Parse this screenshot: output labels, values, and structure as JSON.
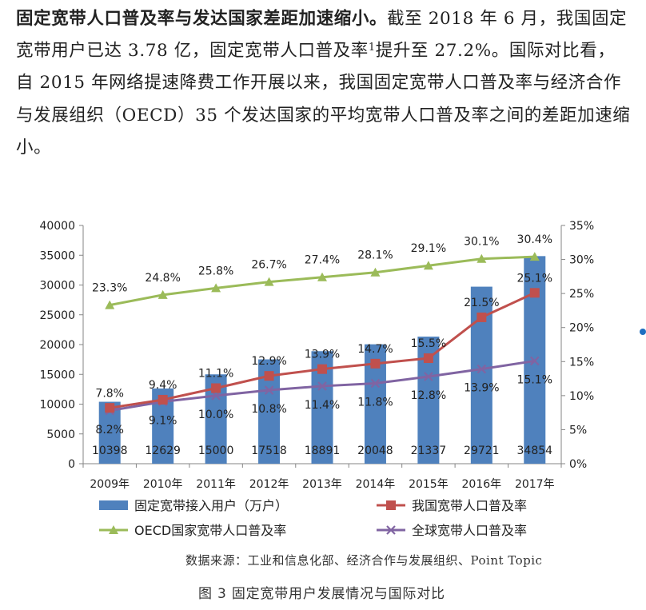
{
  "paragraph": {
    "lead": "固定宽带人口普及率与发达国家差距加速缩小。",
    "text_a": "截至 2018 年 6 月，我国固定宽带用户已达 3.78 亿，固定宽带人口普及率",
    "sup": "1",
    "text_b": "提升至 27.2%。国际对比看，自 2015 年网络提速降费工作开展以来，我国固定宽带人口普及率与经济合作与发展组织（OECD）35 个发达国家的平均宽带人口普及率之间的差距加速缩小。"
  },
  "source": "数据来源：工业和信息化部、经济合作与发展组织、Point Topic",
  "caption": "图 3 固定宽带用户发展情况与国际对比",
  "colors": {
    "bar": "#4f81bd",
    "china": "#c0504d",
    "oecd": "#9bbb59",
    "global": "#8064a2",
    "axis": "#868686",
    "dot": "#1f6fc1"
  },
  "chart_data": {
    "type": "bar",
    "categories": [
      "2009年",
      "2010年",
      "2011年",
      "2012年",
      "2013年",
      "2014年",
      "2015年",
      "2016年",
      "2017年"
    ],
    "y_left": {
      "ylim": [
        0,
        40000
      ],
      "ticks": [
        "0",
        "5000",
        "10000",
        "15000",
        "20000",
        "25000",
        "30000",
        "35000",
        "40000"
      ]
    },
    "y_right": {
      "ylim": [
        0,
        35
      ],
      "ticks": [
        "0%",
        "5%",
        "10%",
        "15%",
        "20%",
        "25%",
        "30%",
        "35%"
      ]
    },
    "grid": false,
    "legend_position": "bottom",
    "series": [
      {
        "name": "固定宽带接入用户（万户）",
        "kind": "bar",
        "axis": "left",
        "values": [
          10398,
          12629,
          15000,
          17518,
          18891,
          20048,
          21337,
          29721,
          34854
        ],
        "labels": [
          "10398",
          "12629",
          "15000",
          "17518",
          "18891",
          "20048",
          "21337",
          "29721",
          "34854"
        ]
      },
      {
        "name": "我国宽带人口普及率",
        "kind": "line",
        "marker": "square",
        "axis": "right",
        "values": [
          8.2,
          9.4,
          11.1,
          12.9,
          13.9,
          14.7,
          15.5,
          21.5,
          25.1
        ],
        "labels": [
          "8.2%",
          "9.4%",
          "11.1%",
          "12.9%",
          "13.9%",
          "14.7%",
          "15.5%",
          "21.5%",
          "25.1%"
        ]
      },
      {
        "name": "OECD国家宽带人口普及率",
        "kind": "line",
        "marker": "triangle",
        "axis": "right",
        "values": [
          23.3,
          24.8,
          25.8,
          26.7,
          27.4,
          28.1,
          29.1,
          30.1,
          30.4
        ],
        "labels": [
          "23.3%",
          "24.8%",
          "25.8%",
          "26.7%",
          "27.4%",
          "28.1%",
          "29.1%",
          "30.1%",
          "30.4%"
        ]
      },
      {
        "name": "全球宽带人口普及率",
        "kind": "line",
        "marker": "x",
        "axis": "right",
        "values": [
          7.8,
          9.1,
          10.0,
          10.8,
          11.4,
          11.8,
          12.8,
          13.9,
          15.1
        ],
        "labels": [
          "7.8%",
          "9.1%",
          "10.0%",
          "10.8%",
          "11.4%",
          "11.8%",
          "12.8%",
          "13.9%",
          "15.1%"
        ]
      }
    ]
  }
}
